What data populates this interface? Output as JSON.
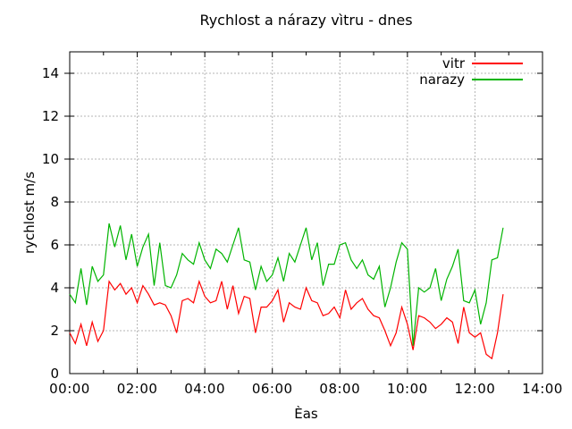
{
  "chart_data": {
    "type": "line",
    "title": "Rychlost a nárazy vìtru - dnes",
    "xlabel": "Èas",
    "ylabel": "rychlost m/s",
    "x_range_hours": [
      0,
      14
    ],
    "x_tick_hours": [
      0,
      2,
      4,
      6,
      8,
      10,
      12,
      14
    ],
    "x_tick_labels": [
      "00:00",
      "02:00",
      "04:00",
      "06:00",
      "08:00",
      "10:00",
      "12:00",
      "14:00"
    ],
    "x_minor_tick_hours": [
      1,
      3,
      5,
      7,
      9,
      11,
      13
    ],
    "ylim": [
      0,
      15
    ],
    "y_ticks": [
      0,
      2,
      4,
      6,
      8,
      10,
      12,
      14
    ],
    "grid": true,
    "legend_position": "top-right-inside",
    "start_time": "00:00",
    "sample_interval_minutes": 10,
    "series": [
      {
        "name": "vitr",
        "color": "#ff0000",
        "values": [
          1.9,
          1.4,
          2.3,
          1.3,
          2.4,
          1.5,
          2.0,
          4.3,
          3.9,
          4.2,
          3.7,
          4.0,
          3.3,
          4.1,
          3.7,
          3.2,
          3.3,
          3.2,
          2.7,
          1.9,
          3.4,
          3.5,
          3.3,
          4.3,
          3.6,
          3.3,
          3.4,
          4.3,
          3.0,
          4.1,
          2.8,
          3.6,
          3.5,
          1.9,
          3.1,
          3.1,
          3.4,
          3.9,
          2.4,
          3.3,
          3.1,
          3.0,
          4.0,
          3.4,
          3.3,
          2.7,
          2.8,
          3.1,
          2.6,
          3.9,
          3.0,
          3.3,
          3.5,
          3.0,
          2.7,
          2.6,
          2.0,
          1.3,
          1.9,
          3.1,
          2.3,
          1.1,
          2.7,
          2.6,
          2.4,
          2.1,
          2.3,
          2.6,
          2.4,
          1.4,
          3.1,
          1.9,
          1.7,
          1.9,
          0.9,
          0.7,
          1.9,
          3.7
        ]
      },
      {
        "name": "narazy",
        "color": "#00b400",
        "values": [
          3.7,
          3.3,
          4.9,
          3.2,
          5.0,
          4.3,
          4.6,
          7.0,
          5.9,
          6.9,
          5.3,
          6.5,
          5.0,
          5.9,
          6.5,
          4.1,
          6.1,
          4.1,
          4.0,
          4.6,
          5.6,
          5.3,
          5.1,
          6.1,
          5.3,
          4.9,
          5.8,
          5.6,
          5.2,
          6.0,
          6.8,
          5.3,
          5.2,
          3.9,
          5.0,
          4.3,
          4.6,
          5.4,
          4.3,
          5.6,
          5.2,
          6.0,
          6.8,
          5.3,
          6.1,
          4.1,
          5.1,
          5.1,
          6.0,
          6.1,
          5.3,
          4.9,
          5.3,
          4.6,
          4.4,
          5.0,
          3.1,
          4.0,
          5.2,
          6.1,
          5.8,
          1.3,
          4.0,
          3.8,
          4.0,
          4.9,
          3.4,
          4.4,
          5.0,
          5.8,
          3.4,
          3.3,
          3.9,
          2.3,
          3.3,
          5.3,
          5.4,
          6.8
        ]
      }
    ]
  },
  "colors": {
    "background": "#ffffff",
    "border": "#000000",
    "grid": "#b5b5b5",
    "text": "#000000"
  }
}
